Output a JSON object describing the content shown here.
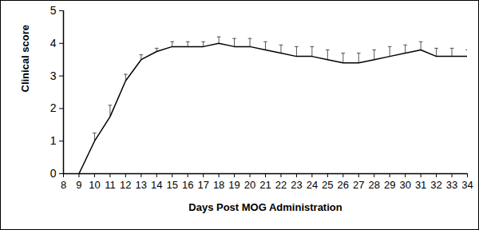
{
  "chart_data": {
    "type": "line",
    "xlabel": "Days Post MOG Administration",
    "ylabel": "Clinical score",
    "x": [
      9,
      10,
      11,
      12,
      13,
      14,
      15,
      16,
      17,
      18,
      19,
      20,
      21,
      22,
      23,
      24,
      25,
      26,
      27,
      28,
      29,
      30,
      31,
      32,
      33,
      34
    ],
    "values": [
      0,
      1.0,
      1.75,
      2.85,
      3.5,
      3.75,
      3.9,
      3.9,
      3.9,
      4.0,
      3.9,
      3.9,
      3.8,
      3.7,
      3.6,
      3.6,
      3.5,
      3.4,
      3.4,
      3.5,
      3.6,
      3.7,
      3.8,
      3.6,
      3.6,
      3.6
    ],
    "errors": [
      0,
      0.25,
      0.35,
      0.2,
      0.15,
      0.1,
      0.15,
      0.15,
      0.15,
      0.2,
      0.25,
      0.25,
      0.25,
      0.25,
      0.3,
      0.3,
      0.3,
      0.3,
      0.3,
      0.3,
      0.3,
      0.25,
      0.25,
      0.25,
      0.25,
      0.2
    ],
    "color": "#000000",
    "xlim": [
      8,
      34
    ],
    "xticks": [
      8,
      9,
      10,
      11,
      12,
      13,
      14,
      15,
      16,
      17,
      18,
      19,
      20,
      21,
      22,
      23,
      24,
      25,
      26,
      27,
      28,
      29,
      30,
      31,
      32,
      33,
      34
    ],
    "ylim": [
      0,
      5
    ],
    "yticks": [
      0,
      1,
      2,
      3,
      4,
      5
    ],
    "grid": false
  }
}
